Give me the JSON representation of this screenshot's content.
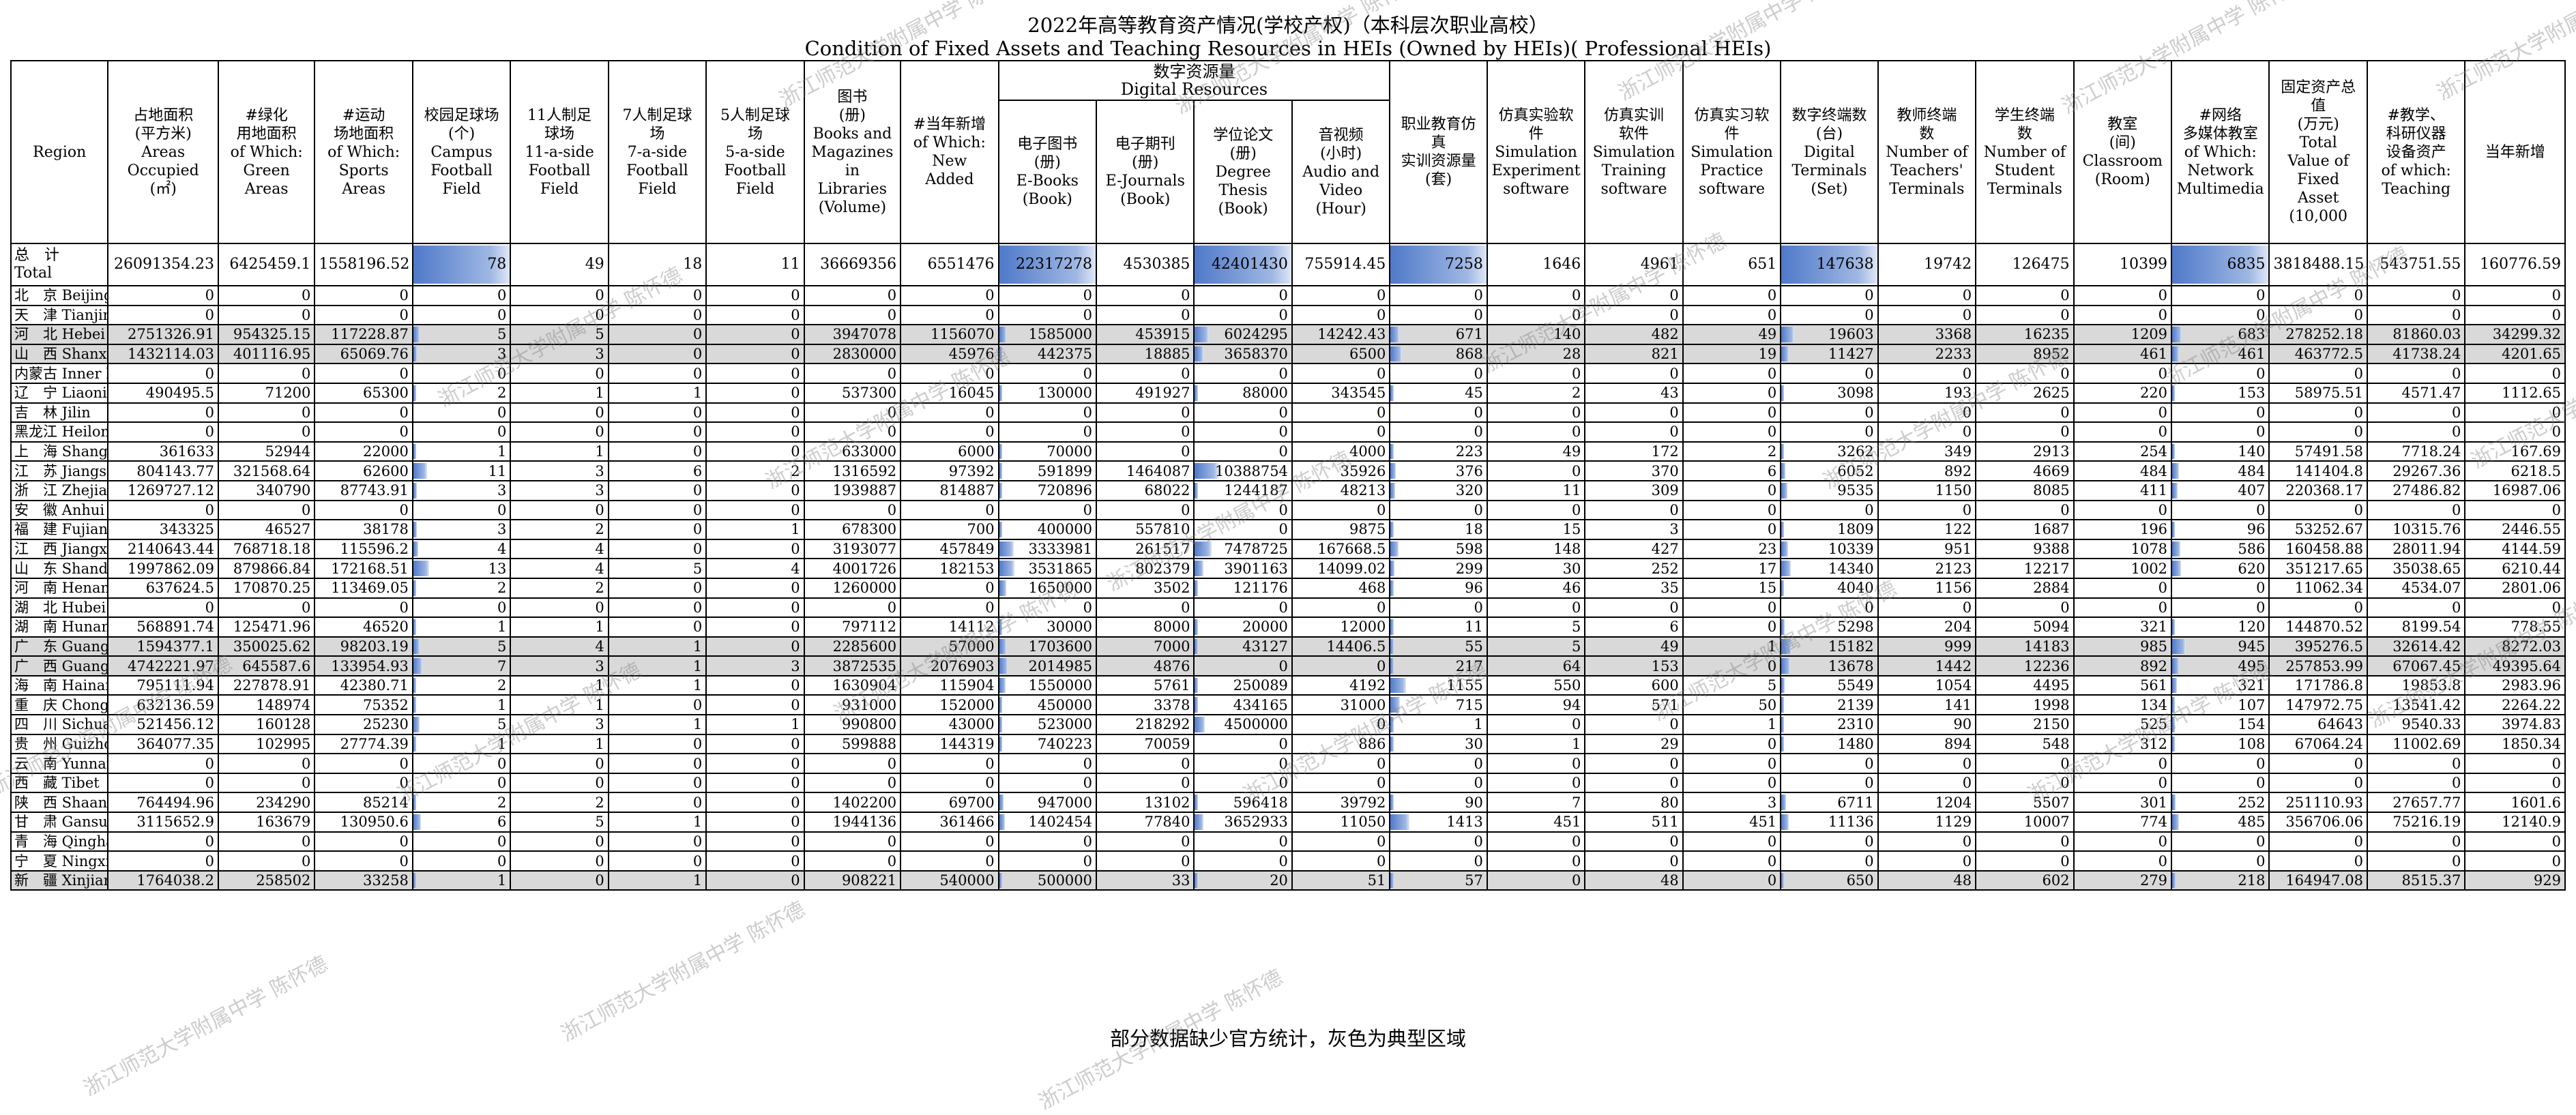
{
  "title_cn": "2022年高等教育资产情况(学校产权)（本科层次职业高校）",
  "title_en": "Condition of Fixed Assets and Teaching Resources in HEIs (Owned by HEIs)( Professional HEIs)",
  "footer": "部分数据缺少官方统计，灰色为典型区域",
  "watermark": "浙江师范大学附属中学 陈怀德",
  "group_headers": {
    "books": "图书\n(册)\nBooks and\nMagazines\nin\nLibraries\n(Volume)",
    "digital": "数字资源量\nDigital Resources",
    "terminals": "数字终端数\n(台)\nDigital\nTerminals\n(Set)"
  },
  "columns": [
    {
      "key": "region",
      "label": "Region"
    },
    {
      "key": "area",
      "label": "占地面积\n(平方米)\nAreas\nOccupied\n(㎡)"
    },
    {
      "key": "green",
      "label": "#绿化\n用地面积\nof Which:\nGreen\nAreas"
    },
    {
      "key": "sports",
      "label": "#运动\n场地面积\nof Which:\nSports\nAreas"
    },
    {
      "key": "field",
      "label": "校园足球场\n(个)\nCampus\nFootball\nField"
    },
    {
      "key": "f11",
      "label": "11人制足\n球场\n11-a-side\nFootball\nField"
    },
    {
      "key": "f7",
      "label": "7人制足球\n场\n7-a-side\nFootball\nField"
    },
    {
      "key": "f5",
      "label": "5人制足球\n场\n5-a-side\nFootball\nField"
    },
    {
      "key": "books",
      "label": ""
    },
    {
      "key": "books_new",
      "label": "#当年新增\nof Which:\nNew\nAdded"
    },
    {
      "key": "ebooks",
      "label": "电子图书\n(册)\nE-Books\n(Book)"
    },
    {
      "key": "ejournals",
      "label": "电子期刊\n(册)\nE-Journals\n(Book)"
    },
    {
      "key": "thesis",
      "label": "学位论文\n(册)\nDegree\nThesis\n(Book)"
    },
    {
      "key": "av",
      "label": "音视频\n(小时)\nAudio and\nVideo\n(Hour)"
    },
    {
      "key": "sim_res",
      "label": "职业教育仿\n真\n实训资源量\n(套)"
    },
    {
      "key": "sim_exp",
      "label": "仿真实验软\n件\nSimulation\nExperiment\nsoftware"
    },
    {
      "key": "sim_train",
      "label": "仿真实训\n软件\nSimulation\nTraining\nsoftware"
    },
    {
      "key": "sim_prac",
      "label": "仿真实习软\n件\nSimulation\nPractice\nsoftware"
    },
    {
      "key": "terminals",
      "label": ""
    },
    {
      "key": "t_teacher",
      "label": "教师终端\n数\nNumber of\nTeachers'\nTerminals"
    },
    {
      "key": "t_student",
      "label": "学生终端\n数\nNumber of\nStudent\nTerminals"
    },
    {
      "key": "classroom",
      "label": "教室\n(间)\nClassroom\n(Room)"
    },
    {
      "key": "multimedia",
      "label": "#网络\n多媒体教室\nof Which:\nNetwork\nMultimedia"
    },
    {
      "key": "fixed",
      "label": "固定资产总\n值\n(万元)\nTotal\nValue of\nFixed\nAsset\n(10,000"
    },
    {
      "key": "teach_equip",
      "label": "#教学、\n科研仪器\n设备资产\nof which:\nTeaching"
    },
    {
      "key": "equip_new",
      "label": "当年新增"
    }
  ],
  "bar_max": {
    "field": 78,
    "ebooks": 22317278,
    "thesis": 42401430,
    "sim_res": 7258,
    "terminals": 147638,
    "multimedia": 6835
  },
  "rows": [
    {
      "region": "总　计\nTotal",
      "hl": false,
      "total": true,
      "v": [
        "26091354.23",
        "6425459.1",
        "1558196.52",
        "78",
        "49",
        "18",
        "11",
        "36669356",
        "6551476",
        "22317278",
        "4530385",
        "42401430",
        "755914.45",
        "7258",
        "1646",
        "4961",
        "651",
        "147638",
        "19742",
        "126475",
        "10399",
        "6835",
        "3818488.15",
        "543751.55",
        "160776.59"
      ]
    },
    {
      "region": "北　京 Beijing",
      "hl": false,
      "v": [
        "0",
        "0",
        "0",
        "0",
        "0",
        "0",
        "0",
        "0",
        "0",
        "0",
        "0",
        "0",
        "0",
        "0",
        "0",
        "0",
        "0",
        "0",
        "0",
        "0",
        "0",
        "0",
        "0",
        "0",
        "0"
      ]
    },
    {
      "region": "天　津 Tianjin",
      "hl": false,
      "v": [
        "0",
        "0",
        "0",
        "0",
        "0",
        "0",
        "0",
        "0",
        "0",
        "0",
        "0",
        "0",
        "0",
        "0",
        "0",
        "0",
        "0",
        "0",
        "0",
        "0",
        "0",
        "0",
        "0",
        "0",
        "0"
      ]
    },
    {
      "region": "河　北 Hebei",
      "hl": true,
      "v": [
        "2751326.91",
        "954325.15",
        "117228.87",
        "5",
        "5",
        "0",
        "0",
        "3947078",
        "1156070",
        "1585000",
        "453915",
        "6024295",
        "14242.43",
        "671",
        "140",
        "482",
        "49",
        "19603",
        "3368",
        "16235",
        "1209",
        "683",
        "278252.18",
        "81860.03",
        "34299.32"
      ]
    },
    {
      "region": "山　西 Shanxi",
      "hl": true,
      "v": [
        "1432114.03",
        "401116.95",
        "65069.76",
        "3",
        "3",
        "0",
        "0",
        "2830000",
        "45976",
        "442375",
        "18885",
        "3658370",
        "6500",
        "868",
        "28",
        "821",
        "19",
        "11427",
        "2233",
        "8952",
        "461",
        "461",
        "463772.5",
        "41738.24",
        "4201.65"
      ]
    },
    {
      "region": "内蒙古 Inner Mongolia",
      "hl": false,
      "v": [
        "0",
        "0",
        "0",
        "0",
        "0",
        "0",
        "0",
        "0",
        "0",
        "0",
        "0",
        "0",
        "0",
        "0",
        "0",
        "0",
        "0",
        "0",
        "0",
        "0",
        "0",
        "0",
        "0",
        "0",
        "0"
      ]
    },
    {
      "region": "辽　宁 Liaoning",
      "hl": false,
      "v": [
        "490495.5",
        "71200",
        "65300",
        "2",
        "1",
        "1",
        "0",
        "537300",
        "16045",
        "130000",
        "491927",
        "88000",
        "343545",
        "45",
        "2",
        "43",
        "0",
        "3098",
        "193",
        "2625",
        "220",
        "153",
        "58975.51",
        "4571.47",
        "1112.65"
      ]
    },
    {
      "region": "吉　林 Jilin",
      "hl": false,
      "v": [
        "0",
        "0",
        "0",
        "0",
        "0",
        "0",
        "0",
        "0",
        "0",
        "0",
        "0",
        "0",
        "0",
        "0",
        "0",
        "0",
        "0",
        "0",
        "0",
        "0",
        "0",
        "0",
        "0",
        "0",
        "0"
      ]
    },
    {
      "region": "黑龙江 Heilongjiang",
      "hl": false,
      "v": [
        "0",
        "0",
        "0",
        "0",
        "0",
        "0",
        "0",
        "0",
        "0",
        "0",
        "0",
        "0",
        "0",
        "0",
        "0",
        "0",
        "0",
        "0",
        "0",
        "0",
        "0",
        "0",
        "0",
        "0",
        "0"
      ]
    },
    {
      "region": "上　海 Shanghai",
      "hl": false,
      "v": [
        "361633",
        "52944",
        "22000",
        "1",
        "1",
        "0",
        "0",
        "633000",
        "6000",
        "70000",
        "0",
        "0",
        "4000",
        "223",
        "49",
        "172",
        "2",
        "3262",
        "349",
        "2913",
        "254",
        "140",
        "57491.58",
        "7718.24",
        "167.69"
      ]
    },
    {
      "region": "江　苏 Jiangsu",
      "hl": false,
      "v": [
        "804143.77",
        "321568.64",
        "62600",
        "11",
        "3",
        "6",
        "2",
        "1316592",
        "97392",
        "591899",
        "1464087",
        "10388754",
        "35926",
        "376",
        "0",
        "370",
        "6",
        "6052",
        "892",
        "4669",
        "484",
        "484",
        "141404.8",
        "29267.36",
        "6218.5"
      ]
    },
    {
      "region": "浙　江 Zhejiang",
      "hl": false,
      "v": [
        "1269727.12",
        "340790",
        "87743.91",
        "3",
        "3",
        "0",
        "0",
        "1939887",
        "814887",
        "720896",
        "68022",
        "1244187",
        "48213",
        "320",
        "11",
        "309",
        "0",
        "9535",
        "1150",
        "8085",
        "411",
        "407",
        "220368.17",
        "27486.82",
        "16987.06"
      ]
    },
    {
      "region": "安　徽 Anhui",
      "hl": false,
      "v": [
        "0",
        "0",
        "0",
        "0",
        "0",
        "0",
        "0",
        "0",
        "0",
        "0",
        "0",
        "0",
        "0",
        "0",
        "0",
        "0",
        "0",
        "0",
        "0",
        "0",
        "0",
        "0",
        "0",
        "0",
        "0"
      ]
    },
    {
      "region": "福　建 Fujian",
      "hl": false,
      "v": [
        "343325",
        "46527",
        "38178",
        "3",
        "2",
        "0",
        "1",
        "678300",
        "700",
        "400000",
        "557810",
        "0",
        "9875",
        "18",
        "15",
        "3",
        "0",
        "1809",
        "122",
        "1687",
        "196",
        "96",
        "53252.67",
        "10315.76",
        "2446.55"
      ]
    },
    {
      "region": "江　西 Jiangxi",
      "hl": false,
      "v": [
        "2140643.44",
        "768718.18",
        "115596.2",
        "4",
        "4",
        "0",
        "0",
        "3193077",
        "457849",
        "3333981",
        "261517",
        "7478725",
        "167668.5",
        "598",
        "148",
        "427",
        "23",
        "10339",
        "951",
        "9388",
        "1078",
        "586",
        "160458.88",
        "28011.94",
        "4144.59"
      ]
    },
    {
      "region": "山　东 Shandong",
      "hl": false,
      "v": [
        "1997862.09",
        "879866.84",
        "172168.51",
        "13",
        "4",
        "5",
        "4",
        "4001726",
        "182153",
        "3531865",
        "802379",
        "3901163",
        "14099.02",
        "299",
        "30",
        "252",
        "17",
        "14340",
        "2123",
        "12217",
        "1002",
        "620",
        "351217.65",
        "35038.65",
        "6210.44"
      ]
    },
    {
      "region": "河　南 Henan",
      "hl": false,
      "v": [
        "637624.5",
        "170870.25",
        "113469.05",
        "2",
        "2",
        "0",
        "0",
        "1260000",
        "0",
        "1650000",
        "3502",
        "121176",
        "468",
        "96",
        "46",
        "35",
        "15",
        "4040",
        "1156",
        "2884",
        "0",
        "0",
        "11062.34",
        "4534.07",
        "2801.06"
      ]
    },
    {
      "region": "湖　北 Hubei",
      "hl": false,
      "v": [
        "0",
        "0",
        "0",
        "0",
        "0",
        "0",
        "0",
        "0",
        "0",
        "0",
        "0",
        "0",
        "0",
        "0",
        "0",
        "0",
        "0",
        "0",
        "0",
        "0",
        "0",
        "0",
        "0",
        "0",
        "0"
      ]
    },
    {
      "region": "湖　南 Hunan",
      "hl": false,
      "v": [
        "568891.74",
        "125471.96",
        "46520",
        "1",
        "1",
        "0",
        "0",
        "797112",
        "14112",
        "30000",
        "8000",
        "20000",
        "12000",
        "11",
        "5",
        "6",
        "0",
        "5298",
        "204",
        "5094",
        "321",
        "120",
        "144870.52",
        "8199.54",
        "778.55"
      ]
    },
    {
      "region": "广　东 Guangdong",
      "hl": true,
      "v": [
        "1594377.1",
        "350025.62",
        "98203.19",
        "5",
        "4",
        "1",
        "0",
        "2285600",
        "57000",
        "1703600",
        "7000",
        "43127",
        "14406.5",
        "55",
        "5",
        "49",
        "1",
        "15182",
        "999",
        "14183",
        "985",
        "945",
        "395276.5",
        "32614.42",
        "8272.03"
      ]
    },
    {
      "region": "广　西 Guangxi",
      "hl": true,
      "v": [
        "4742221.97",
        "645587.6",
        "133954.93",
        "7",
        "3",
        "1",
        "3",
        "3872535",
        "2076903",
        "2014985",
        "4876",
        "0",
        "0",
        "217",
        "64",
        "153",
        "0",
        "13678",
        "1442",
        "12236",
        "892",
        "495",
        "257853.99",
        "67067.45",
        "49395.64"
      ]
    },
    {
      "region": "海　南 Hainan",
      "hl": false,
      "v": [
        "795111.94",
        "227878.91",
        "42380.71",
        "2",
        "1",
        "1",
        "0",
        "1630904",
        "115904",
        "1550000",
        "5761",
        "250089",
        "4192",
        "1155",
        "550",
        "600",
        "5",
        "5549",
        "1054",
        "4495",
        "561",
        "321",
        "171786.8",
        "19853.8",
        "2983.96"
      ]
    },
    {
      "region": "重　庆 Chongqing",
      "hl": false,
      "v": [
        "632136.59",
        "148974",
        "75352",
        "1",
        "1",
        "0",
        "0",
        "931000",
        "152000",
        "450000",
        "3378",
        "434165",
        "31000",
        "715",
        "94",
        "571",
        "50",
        "2139",
        "141",
        "1998",
        "134",
        "107",
        "147972.75",
        "13541.42",
        "2264.22"
      ]
    },
    {
      "region": "四　川 Sichuan",
      "hl": false,
      "v": [
        "521456.12",
        "160128",
        "25230",
        "5",
        "3",
        "1",
        "1",
        "990800",
        "43000",
        "523000",
        "218292",
        "4500000",
        "0",
        "1",
        "0",
        "0",
        "1",
        "2310",
        "90",
        "2150",
        "525",
        "154",
        "64643",
        "9540.33",
        "3974.83"
      ]
    },
    {
      "region": "贵　州 Guizhou",
      "hl": false,
      "v": [
        "364077.35",
        "102995",
        "27774.39",
        "1",
        "1",
        "0",
        "0",
        "599888",
        "144319",
        "740223",
        "70059",
        "0",
        "886",
        "30",
        "1",
        "29",
        "0",
        "1480",
        "894",
        "548",
        "312",
        "108",
        "67064.24",
        "11002.69",
        "1850.34"
      ]
    },
    {
      "region": "云　南 Yunnan",
      "hl": false,
      "v": [
        "0",
        "0",
        "0",
        "0",
        "0",
        "0",
        "0",
        "0",
        "0",
        "0",
        "0",
        "0",
        "0",
        "0",
        "0",
        "0",
        "0",
        "0",
        "0",
        "0",
        "0",
        "0",
        "0",
        "0",
        "0"
      ]
    },
    {
      "region": "西　藏 Tibet",
      "hl": false,
      "v": [
        "0",
        "0",
        "0",
        "0",
        "0",
        "0",
        "0",
        "0",
        "0",
        "0",
        "0",
        "0",
        "0",
        "0",
        "0",
        "0",
        "0",
        "0",
        "0",
        "0",
        "0",
        "0",
        "0",
        "0",
        "0"
      ]
    },
    {
      "region": "陕　西 Shaanxi",
      "hl": false,
      "v": [
        "764494.96",
        "234290",
        "85214",
        "2",
        "2",
        "0",
        "0",
        "1402200",
        "69700",
        "947000",
        "13102",
        "596418",
        "39792",
        "90",
        "7",
        "80",
        "3",
        "6711",
        "1204",
        "5507",
        "301",
        "252",
        "251110.93",
        "27657.77",
        "1601.6"
      ]
    },
    {
      "region": "甘　肃 Gansu",
      "hl": false,
      "v": [
        "3115652.9",
        "163679",
        "130950.6",
        "6",
        "5",
        "1",
        "0",
        "1944136",
        "361466",
        "1402454",
        "77840",
        "3652933",
        "11050",
        "1413",
        "451",
        "511",
        "451",
        "11136",
        "1129",
        "10007",
        "774",
        "485",
        "356706.06",
        "75216.19",
        "12140.9"
      ]
    },
    {
      "region": "青　海 Qinghai",
      "hl": false,
      "v": [
        "0",
        "0",
        "0",
        "0",
        "0",
        "0",
        "0",
        "0",
        "0",
        "0",
        "0",
        "0",
        "0",
        "0",
        "0",
        "0",
        "0",
        "0",
        "0",
        "0",
        "0",
        "0",
        "0",
        "0",
        "0"
      ]
    },
    {
      "region": "宁　夏 Ningxia",
      "hl": false,
      "v": [
        "0",
        "0",
        "0",
        "0",
        "0",
        "0",
        "0",
        "0",
        "0",
        "0",
        "0",
        "0",
        "0",
        "0",
        "0",
        "0",
        "0",
        "0",
        "0",
        "0",
        "0",
        "0",
        "0",
        "0",
        "0"
      ]
    },
    {
      "region": "新　疆 Xinjiang",
      "hl": true,
      "v": [
        "1764038.2",
        "258502",
        "33258",
        "1",
        "0",
        "1",
        "0",
        "908221",
        "540000",
        "500000",
        "33",
        "20",
        "51",
        "57",
        "0",
        "48",
        "0",
        "650",
        "48",
        "602",
        "279",
        "218",
        "164947.08",
        "8515.37",
        "929"
      ]
    }
  ]
}
